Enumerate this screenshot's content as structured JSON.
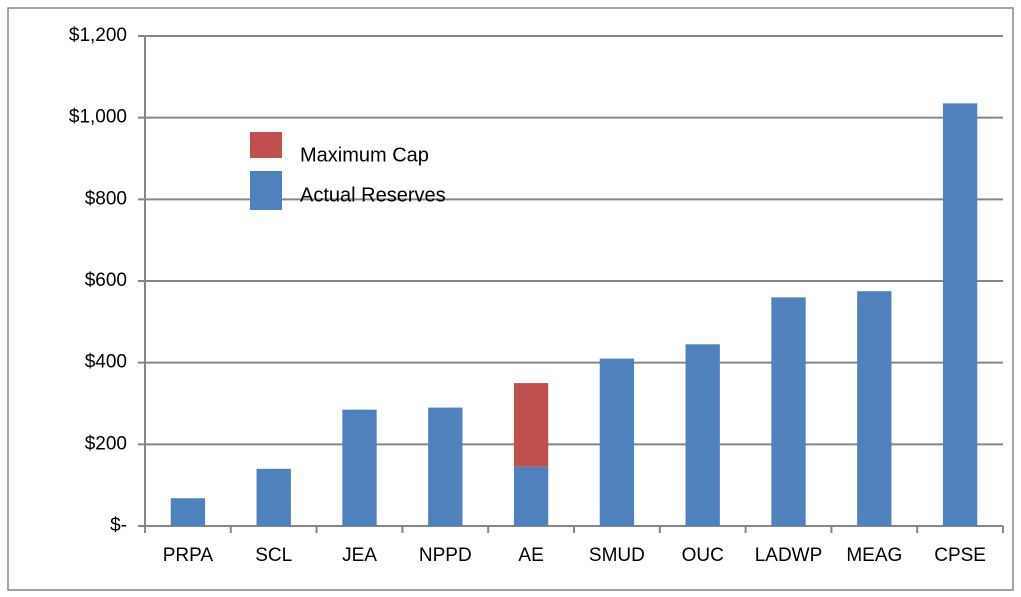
{
  "chart_data": {
    "type": "stacked_bar",
    "categories": [
      "PRPA",
      "SCL",
      "JEA",
      "NPPD",
      "AE",
      "SMUD",
      "OUC",
      "LADWP",
      "MEAG",
      "CPSE"
    ],
    "series": [
      {
        "name": "Actual Reserves",
        "color": "#4f81bd",
        "values": [
          68,
          140,
          285,
          290,
          145,
          410,
          445,
          560,
          575,
          1035
        ]
      },
      {
        "name": "Maximum Cap",
        "color": "#c0504d",
        "values": [
          null,
          null,
          null,
          null,
          205,
          null,
          null,
          null,
          null,
          null
        ]
      }
    ],
    "ylim": [
      0,
      1200
    ],
    "yticks": [
      {
        "value": 0,
        "label": "$-"
      },
      {
        "value": 200,
        "label": "$200"
      },
      {
        "value": 400,
        "label": "$400"
      },
      {
        "value": 600,
        "label": "$600"
      },
      {
        "value": 800,
        "label": "$800"
      },
      {
        "value": 1000,
        "label": "$1,000"
      },
      {
        "value": 1200,
        "label": "$1,200"
      }
    ],
    "grid": true
  }
}
